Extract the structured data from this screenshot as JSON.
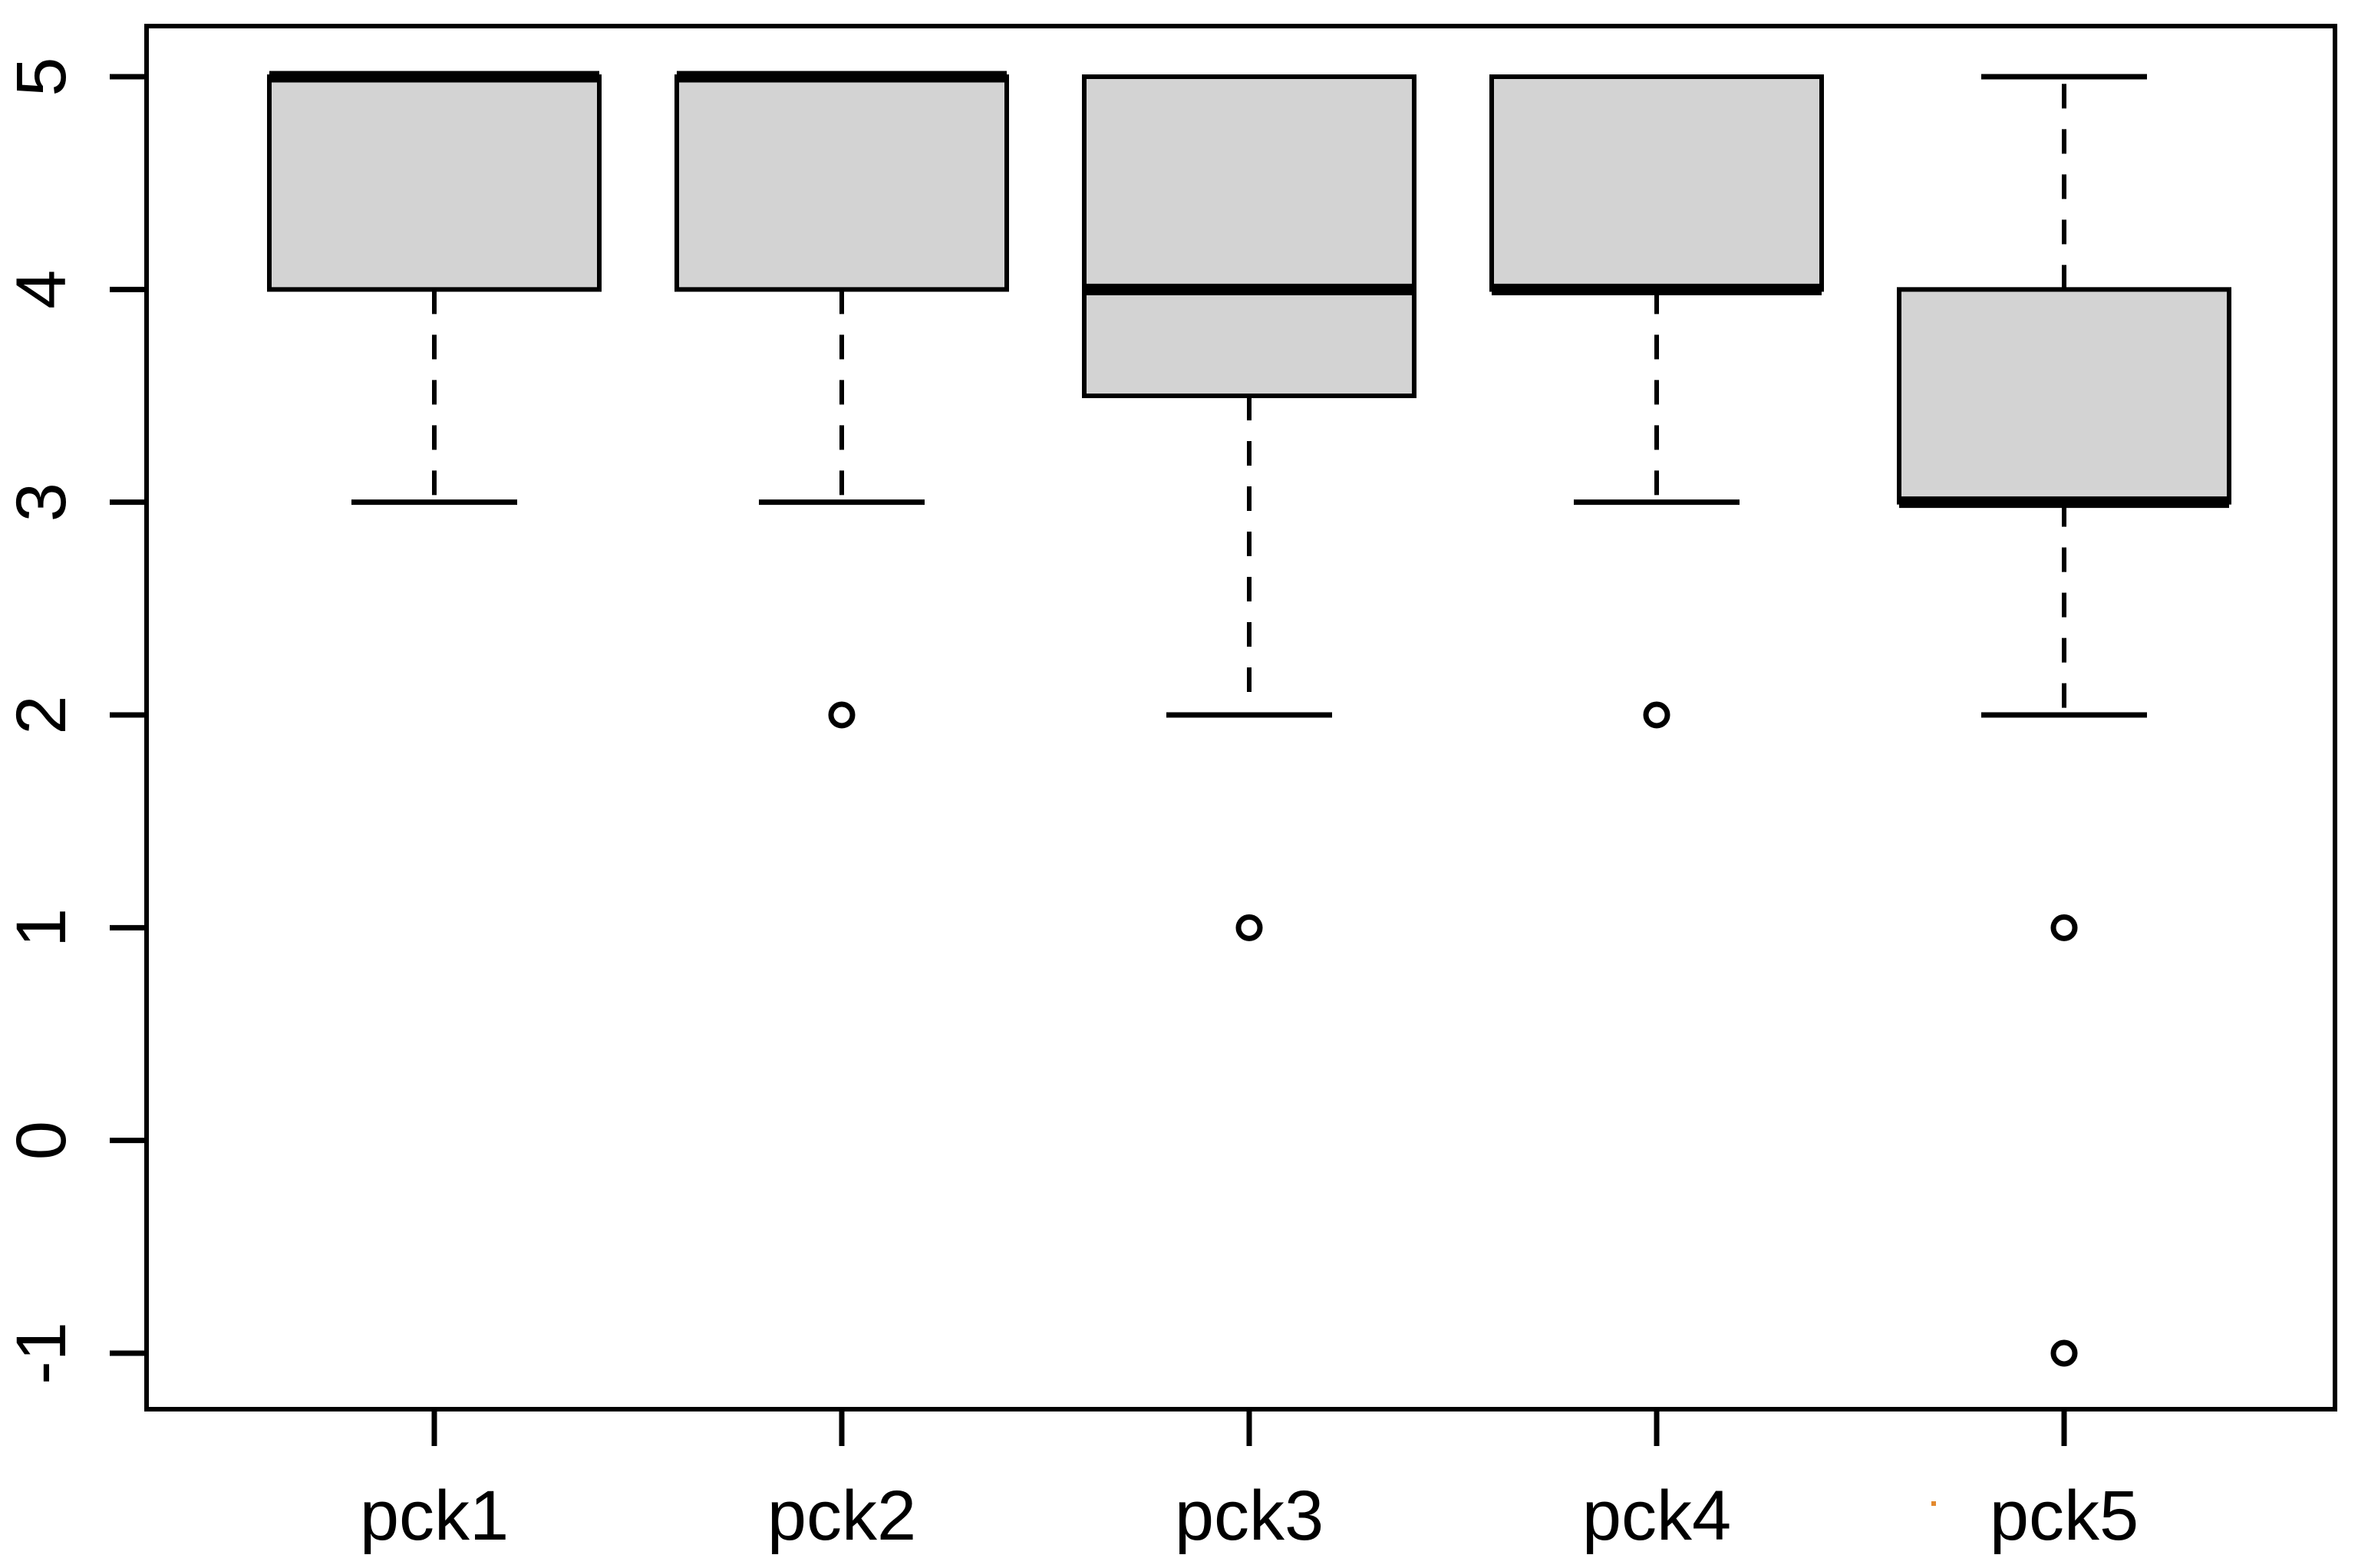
{
  "figure": {
    "background": "#ffffff",
    "title": ""
  },
  "chart_data": {
    "type": "boxplot",
    "title": "",
    "xlabel": "",
    "ylabel": "",
    "categories": [
      "pck1",
      "pck2",
      "pck3",
      "pck4",
      "pck5"
    ],
    "ylim": [
      -1,
      5
    ],
    "yticks": [
      5,
      4,
      3,
      2,
      1,
      0,
      -1
    ],
    "ytick_labels": [
      "5",
      "4",
      "3",
      "2",
      "1",
      "0",
      "-1"
    ],
    "grid": false,
    "legend": "none",
    "box_fill": "#d3d3d3",
    "line_color": "#000000",
    "series": [
      {
        "name": "pck1",
        "q1": 4,
        "median": 5,
        "q3": 5,
        "whisker_low": 3,
        "whisker_high": 5,
        "outliers": []
      },
      {
        "name": "pck2",
        "q1": 4,
        "median": 5,
        "q3": 5,
        "whisker_low": 3,
        "whisker_high": 5,
        "outliers": [
          2
        ]
      },
      {
        "name": "pck3",
        "q1": 3.5,
        "median": 4,
        "q3": 5,
        "whisker_low": 2,
        "whisker_high": 5,
        "outliers": [
          1
        ]
      },
      {
        "name": "pck4",
        "q1": 4,
        "median": 4,
        "q3": 5,
        "whisker_low": 3,
        "whisker_high": 5,
        "outliers": [
          2
        ]
      },
      {
        "name": "pck5",
        "q1": 3,
        "median": 3,
        "q3": 4,
        "whisker_low": 2,
        "whisker_high": 5,
        "outliers": [
          1,
          -1
        ]
      }
    ]
  },
  "artifact_dot": {
    "color": "#e2892e"
  }
}
